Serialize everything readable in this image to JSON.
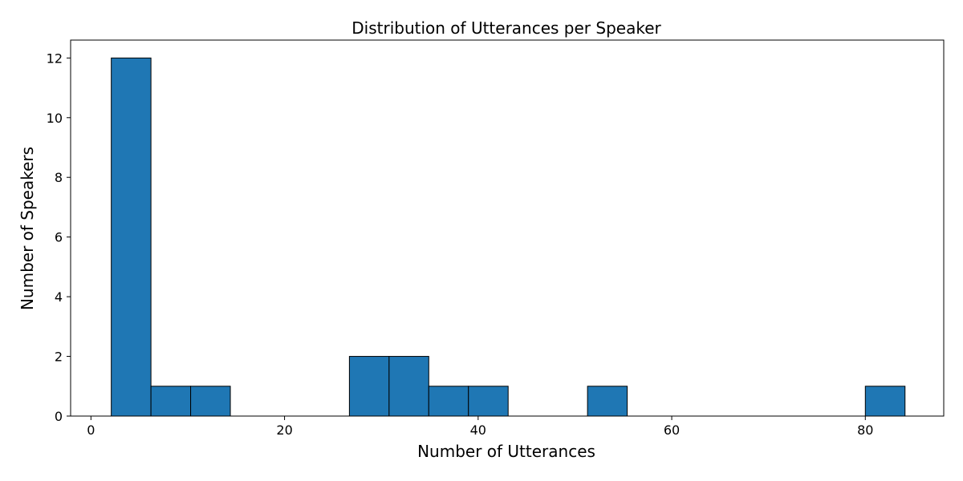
{
  "chart_data": {
    "type": "histogram",
    "title": "Distribution of Utterances per Speaker",
    "xlabel": "Number of Utterances",
    "ylabel": "Number of Speakers",
    "xlim": [
      -2.1,
      88.1
    ],
    "ylim": [
      0,
      12.6
    ],
    "xticks": [
      0,
      20,
      40,
      60,
      80
    ],
    "yticks": [
      0,
      2,
      4,
      6,
      8,
      10,
      12
    ],
    "bin_edges": [
      2.1,
      6.2,
      10.3,
      14.4,
      18.5,
      22.6,
      26.7,
      30.8,
      34.9,
      39.0,
      43.1,
      47.2,
      51.3,
      55.4,
      59.5,
      63.6,
      67.7,
      71.8,
      75.9,
      80.0,
      84.1
    ],
    "counts": [
      12,
      1,
      1,
      0,
      0,
      0,
      2,
      2,
      1,
      1,
      0,
      0,
      1,
      0,
      0,
      0,
      0,
      0,
      0,
      1
    ],
    "bar_color": "#1f77b4",
    "edge_color": "#000000",
    "grid": false
  }
}
